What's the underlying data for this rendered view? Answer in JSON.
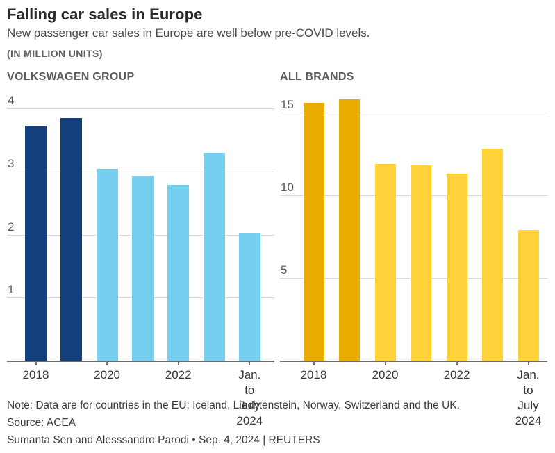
{
  "header": {
    "title": "Falling car sales in Europe",
    "subtitle": "New passenger car sales in Europe are well below pre-COVID levels.",
    "units_label": "(IN MILLION UNITS)"
  },
  "chart_data": [
    {
      "type": "bar",
      "title": "VOLKSWAGEN GROUP",
      "categories": [
        "2018",
        "2019",
        "2020",
        "2021",
        "2022",
        "2023",
        "Jan. to July 2024"
      ],
      "values": [
        3.73,
        3.85,
        3.04,
        2.93,
        2.79,
        3.3,
        2.02
      ],
      "ylabel": "million units",
      "ylim": [
        0,
        4
      ],
      "yticks": [
        1,
        2,
        3,
        4
      ],
      "xticks": [
        {
          "index": 0,
          "label": "2018"
        },
        {
          "index": 2,
          "label": "2020"
        },
        {
          "index": 4,
          "label": "2022"
        },
        {
          "index": 6,
          "label": "Jan. to July\n2024"
        }
      ],
      "grid": "horizontal",
      "legend": "none",
      "colors": {
        "highlight": "#143f7d",
        "normal": "#77cff0"
      },
      "bar_styles": [
        "highlight",
        "highlight",
        "normal",
        "normal",
        "normal",
        "normal",
        "normal"
      ]
    },
    {
      "type": "bar",
      "title": "ALL BRANDS",
      "categories": [
        "2018",
        "2019",
        "2020",
        "2021",
        "2022",
        "2023",
        "Jan. to July 2024"
      ],
      "values": [
        15.6,
        15.8,
        11.9,
        11.8,
        11.3,
        12.8,
        7.9
      ],
      "ylabel": "million units",
      "ylim": [
        0,
        15
      ],
      "yticks": [
        5,
        10,
        15
      ],
      "xticks": [
        {
          "index": 0,
          "label": "2018"
        },
        {
          "index": 2,
          "label": "2020"
        },
        {
          "index": 4,
          "label": "2022"
        },
        {
          "index": 6,
          "label": "Jan. to July\n2024"
        }
      ],
      "grid": "horizontal",
      "legend": "none",
      "colors": {
        "highlight": "#e9ab00",
        "normal": "#ffd23a"
      },
      "bar_styles": [
        "highlight",
        "highlight",
        "normal",
        "normal",
        "normal",
        "normal",
        "normal"
      ]
    }
  ],
  "footer": {
    "note": "Note: Data are for countries in the EU; Iceland, Liechtenstein, Norway, Switzerland and the UK.",
    "source": "Source: ACEA",
    "byline": "Sumanta Sen and Alesssandro Parodi • Sep. 4, 2024 | REUTERS"
  }
}
